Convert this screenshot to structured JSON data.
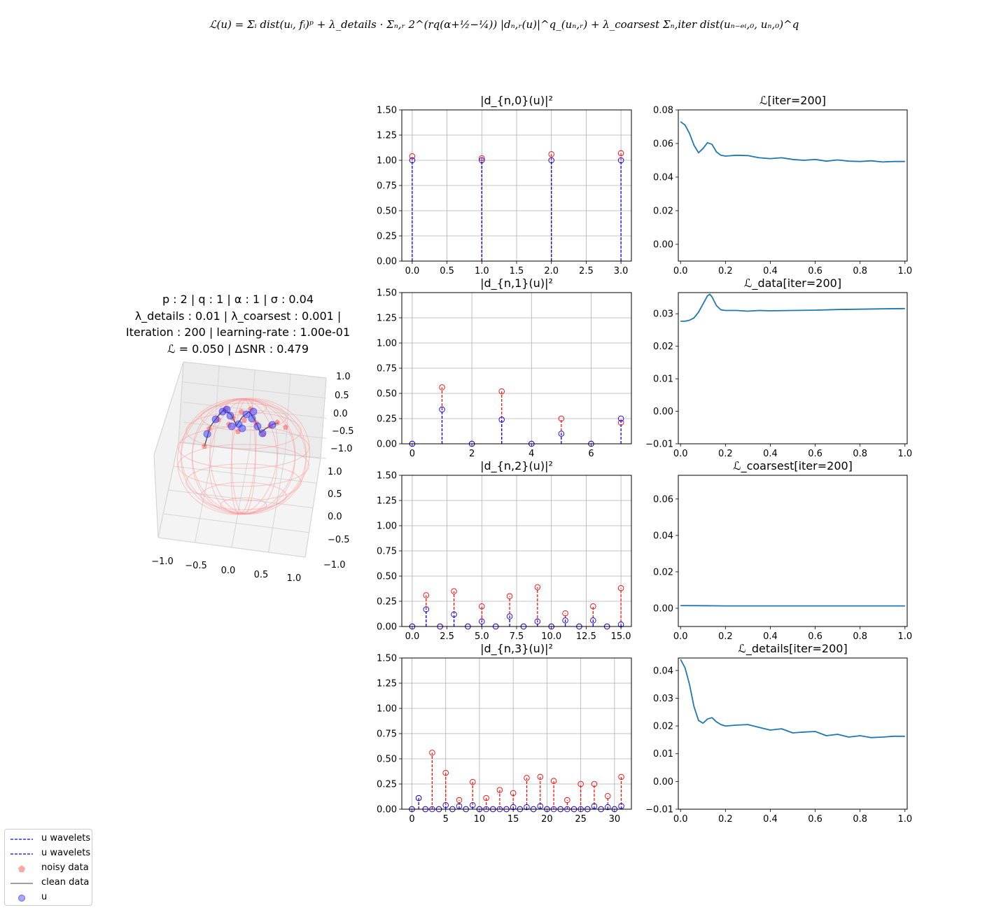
{
  "formula": "ℒ(u) = Σᵢ dist(uᵢ, fᵢ)ᵖ + λ_details · Σₙ,ᵣ 2^(rq(α+½−¼)) |dₙ,ᵣ(u)|^q_(uₙ,ᵣ) + λ_coarsest Σₙ,iter dist(uₙ₋ₑᵢ,₀, uₙ,₀)^q",
  "info": {
    "line1": "p : 2 | q : 1 | α : 1 | σ : 0.04",
    "line2": "λ_details : 0.01 | λ_coarsest : 0.001 |",
    "line3": "Iteration : 200 | learning-rate : 1.00e-01",
    "line4": "ℒ = 0.050 | ΔSNR : 0.479"
  },
  "sphere_axes": {
    "x_ticks": [
      "−1.0",
      "−0.5",
      "0.0",
      "0.5",
      "1.0"
    ],
    "y_ticks": [
      "1.0",
      "0.5",
      "0.0",
      "−0.5",
      "−1.0"
    ],
    "z_ticks": [
      "1.0",
      "0.5",
      "0.0",
      "−0.5",
      "−1.0"
    ]
  },
  "legend": {
    "items": [
      {
        "label": "u wavelets",
        "style": "dashed",
        "color": "#0000ff"
      },
      {
        "label": "u wavelets",
        "style": "dashed",
        "color": "#0000ff"
      },
      {
        "label": "noisy data",
        "style": "pentagon",
        "color": "#ff6f6f"
      },
      {
        "label": "clean data",
        "style": "line",
        "color": "#808080"
      },
      {
        "label": "u",
        "style": "circle",
        "color": "#6b6bff"
      }
    ]
  },
  "colors": {
    "noisy": "#ff0000",
    "u": "#0000ff",
    "curve": "#1f77b4",
    "grid": "#b0b0b0"
  },
  "chart_data": [
    {
      "type": "stem",
      "title": "|d_{n,0}(u)|²",
      "ylim": [
        0,
        1.5
      ],
      "xlim": [
        -0.15,
        3.15
      ],
      "x_ticks": [
        0,
        0.5,
        1,
        1.5,
        2,
        2.5,
        3
      ],
      "x_labels": [
        "0.0",
        "0.5",
        "1.0",
        "1.5",
        "2.0",
        "2.5",
        "3.0"
      ],
      "y_ticks": [
        0,
        0.25,
        0.5,
        0.75,
        1,
        1.25,
        1.5
      ],
      "y_labels": [
        "0.00",
        "0.25",
        "0.50",
        "0.75",
        "1.00",
        "1.25",
        "1.50"
      ],
      "noisy": [
        1.04,
        1.02,
        1.06,
        1.07
      ],
      "u": [
        1.0,
        1.0,
        1.0,
        1.0
      ]
    },
    {
      "type": "line",
      "title": "ℒ[iter=200]",
      "xlim": [
        -0.01,
        1.01
      ],
      "ylim": [
        -0.01,
        0.08
      ],
      "x_ticks": [
        0,
        0.2,
        0.4,
        0.6,
        0.8,
        1.0
      ],
      "x_labels": [
        "0.0",
        "0.2",
        "0.4",
        "0.6",
        "0.8",
        "1.0"
      ],
      "y_ticks": [
        0,
        0.02,
        0.04,
        0.06,
        0.08
      ],
      "y_labels": [
        "0.00",
        "0.02",
        "0.04",
        "0.06",
        "0.08"
      ],
      "x": [
        0,
        0.02,
        0.04,
        0.06,
        0.08,
        0.1,
        0.12,
        0.14,
        0.16,
        0.18,
        0.2,
        0.25,
        0.3,
        0.35,
        0.4,
        0.45,
        0.5,
        0.55,
        0.6,
        0.65,
        0.7,
        0.75,
        0.8,
        0.85,
        0.9,
        0.95,
        1.0
      ],
      "y": [
        0.073,
        0.071,
        0.066,
        0.059,
        0.0545,
        0.057,
        0.0605,
        0.0595,
        0.055,
        0.053,
        0.0525,
        0.053,
        0.0528,
        0.0515,
        0.051,
        0.0515,
        0.0505,
        0.05,
        0.0505,
        0.0495,
        0.0502,
        0.0495,
        0.0493,
        0.0497,
        0.049,
        0.0493,
        0.0493
      ]
    },
    {
      "type": "stem",
      "title": "|d_{n,1}(u)|²",
      "ylim": [
        0,
        1.5
      ],
      "xlim": [
        -0.35,
        7.35
      ],
      "x_ticks": [
        0,
        2,
        4,
        6
      ],
      "x_labels": [
        "0",
        "2",
        "4",
        "6"
      ],
      "y_ticks": [
        0,
        0.25,
        0.5,
        0.75,
        1,
        1.25,
        1.5
      ],
      "y_labels": [
        "0.00",
        "0.25",
        "0.50",
        "0.75",
        "1.00",
        "1.25",
        "1.50"
      ],
      "noisy": [
        0,
        0.56,
        0,
        0.52,
        0,
        0.25,
        0,
        0.21
      ],
      "u": [
        0,
        0.34,
        0,
        0.24,
        0,
        0.1,
        0,
        0.25
      ]
    },
    {
      "type": "line",
      "title": "ℒ_data[iter=200]",
      "xlim": [
        -0.01,
        1.01
      ],
      "ylim": [
        -0.01,
        0.0365
      ],
      "x_ticks": [
        0,
        0.2,
        0.4,
        0.6,
        0.8,
        1.0
      ],
      "x_labels": [
        "0.0",
        "0.2",
        "0.4",
        "0.6",
        "0.8",
        "1.0"
      ],
      "y_ticks": [
        -0.01,
        0,
        0.01,
        0.02,
        0.03
      ],
      "y_labels": [
        "−0.01",
        "0.00",
        "0.01",
        "0.02",
        "0.03"
      ],
      "x": [
        0,
        0.02,
        0.04,
        0.06,
        0.08,
        0.1,
        0.12,
        0.13,
        0.14,
        0.16,
        0.18,
        0.2,
        0.25,
        0.3,
        0.35,
        0.4,
        0.5,
        0.6,
        0.7,
        0.8,
        0.9,
        1.0
      ],
      "y": [
        0.0277,
        0.0277,
        0.028,
        0.0287,
        0.0305,
        0.033,
        0.0355,
        0.036,
        0.0352,
        0.0325,
        0.0312,
        0.031,
        0.031,
        0.0308,
        0.031,
        0.0309,
        0.031,
        0.0311,
        0.0313,
        0.0314,
        0.0315,
        0.0316
      ]
    },
    {
      "type": "stem",
      "title": "|d_{n,2}(u)|²",
      "ylim": [
        0,
        1.5
      ],
      "xlim": [
        -0.75,
        15.75
      ],
      "x_ticks": [
        0,
        2.5,
        5,
        7.5,
        10,
        12.5,
        15
      ],
      "x_labels": [
        "0.0",
        "2.5",
        "5.0",
        "7.5",
        "10.0",
        "12.5",
        "15.0"
      ],
      "y_ticks": [
        0,
        0.25,
        0.5,
        0.75,
        1,
        1.25,
        1.5
      ],
      "y_labels": [
        "0.00",
        "0.25",
        "0.50",
        "0.75",
        "1.00",
        "1.25",
        "1.50"
      ],
      "noisy": [
        0,
        0.31,
        0,
        0.35,
        0,
        0.2,
        0,
        0.3,
        0,
        0.39,
        0,
        0.13,
        0,
        0.2,
        0,
        0.38
      ],
      "u": [
        0,
        0.17,
        0,
        0.12,
        0,
        0.05,
        0,
        0.1,
        0,
        0.05,
        0,
        0.06,
        0,
        0.06,
        0,
        0.02
      ]
    },
    {
      "type": "line",
      "title": "ℒ_coarsest[iter=200]",
      "xlim": [
        -0.01,
        1.01
      ],
      "ylim": [
        -0.01,
        0.073
      ],
      "x_ticks": [
        0,
        0.2,
        0.4,
        0.6,
        0.8,
        1.0
      ],
      "x_labels": [
        "0.0",
        "0.2",
        "0.4",
        "0.6",
        "0.8",
        "1.0"
      ],
      "y_ticks": [
        0,
        0.02,
        0.04,
        0.06
      ],
      "y_labels": [
        "0.00",
        "0.02",
        "0.04",
        "0.06"
      ],
      "x": [
        0,
        0.1,
        0.2,
        0.3,
        0.4,
        0.5,
        0.6,
        0.7,
        0.8,
        0.9,
        1.0
      ],
      "y": [
        0.0015,
        0.0014,
        0.0013,
        0.0013,
        0.0013,
        0.0013,
        0.0013,
        0.0013,
        0.0013,
        0.0013,
        0.0013
      ]
    },
    {
      "type": "stem",
      "title": "|d_{n,3}(u)|²",
      "ylim": [
        0,
        1.5
      ],
      "xlim": [
        -1.5,
        32.5
      ],
      "x_ticks": [
        0,
        5,
        10,
        15,
        20,
        25,
        30
      ],
      "x_labels": [
        "0",
        "5",
        "10",
        "15",
        "20",
        "25",
        "30"
      ],
      "y_ticks": [
        0,
        0.25,
        0.5,
        0.75,
        1,
        1.25,
        1.5
      ],
      "y_labels": [
        "0.00",
        "0.25",
        "0.50",
        "0.75",
        "1.00",
        "1.25",
        "1.50"
      ],
      "noisy": [
        0,
        0.11,
        0,
        0.56,
        0,
        0.36,
        0,
        0.09,
        0,
        0.27,
        0,
        0.11,
        0,
        0.19,
        0,
        0.16,
        0,
        0.31,
        0,
        0.32,
        0,
        0.28,
        0,
        0.09,
        0,
        0.25,
        0,
        0.25,
        0,
        0.13,
        0,
        0.32
      ],
      "u": [
        0,
        0.11,
        0,
        0,
        0,
        0.04,
        0,
        0.03,
        0,
        0.04,
        0,
        0,
        0,
        0,
        0,
        0.02,
        0,
        0.02,
        0,
        0.03,
        0,
        0,
        0,
        0,
        0,
        0,
        0,
        0.03,
        0,
        0.02,
        0,
        0.03
      ]
    },
    {
      "type": "line",
      "title": "ℒ_details[iter=200]",
      "xlim": [
        -0.01,
        1.01
      ],
      "ylim": [
        -0.01,
        0.0445
      ],
      "x_ticks": [
        0,
        0.2,
        0.4,
        0.6,
        0.8,
        1.0
      ],
      "x_labels": [
        "0.0",
        "0.2",
        "0.4",
        "0.6",
        "0.8",
        "1.0"
      ],
      "y_ticks": [
        -0.01,
        0,
        0.01,
        0.02,
        0.03,
        0.04
      ],
      "y_labels": [
        "−0.01",
        "0.00",
        "0.01",
        "0.02",
        "0.03",
        "0.04"
      ],
      "x": [
        0,
        0.02,
        0.04,
        0.06,
        0.08,
        0.1,
        0.12,
        0.14,
        0.16,
        0.18,
        0.2,
        0.25,
        0.3,
        0.35,
        0.4,
        0.45,
        0.5,
        0.55,
        0.6,
        0.65,
        0.7,
        0.75,
        0.8,
        0.85,
        0.9,
        0.95,
        1.0
      ],
      "y": [
        0.044,
        0.041,
        0.035,
        0.027,
        0.022,
        0.021,
        0.0225,
        0.023,
        0.0215,
        0.0205,
        0.02,
        0.0203,
        0.0205,
        0.0195,
        0.0185,
        0.019,
        0.0175,
        0.0178,
        0.018,
        0.0165,
        0.017,
        0.016,
        0.0165,
        0.0158,
        0.016,
        0.0163,
        0.0163
      ]
    }
  ]
}
